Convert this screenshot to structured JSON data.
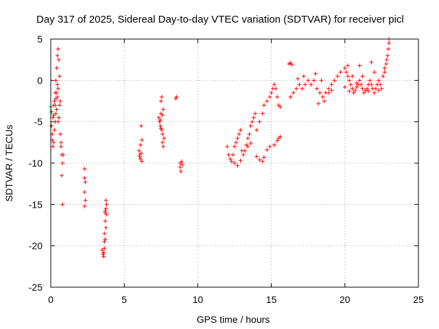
{
  "chart_data": {
    "type": "scatter",
    "title": "Day 317 of 2025, Sidereal Day-to-day VTEC variation (SDTVAR) for receiver picl",
    "xlabel": "GPS time / hours",
    "ylabel": "SDTVAR / TECUs",
    "xlim": [
      0,
      25
    ],
    "ylim": [
      -25,
      5
    ],
    "xticks": [
      0,
      5,
      10,
      15,
      20,
      25
    ],
    "yticks": [
      -25,
      -20,
      -15,
      -10,
      -5,
      0,
      5
    ],
    "grid": true,
    "marker": "plus",
    "marker_color": "#ff0000",
    "series": [
      {
        "name": "SDTVAR",
        "points": [
          [
            0.0,
            -3.2
          ],
          [
            0.05,
            -3.8
          ],
          [
            0.05,
            -5.5
          ],
          [
            0.1,
            -6.5
          ],
          [
            0.1,
            -7.2
          ],
          [
            0.15,
            -4.5
          ],
          [
            0.15,
            -8.0
          ],
          [
            0.2,
            -7.5
          ],
          [
            0.2,
            -3.0
          ],
          [
            0.25,
            -6.0
          ],
          [
            0.25,
            -2.5
          ],
          [
            0.3,
            -5.0
          ],
          [
            0.3,
            -1.5
          ],
          [
            0.35,
            -4.0
          ],
          [
            0.35,
            0.0
          ],
          [
            0.4,
            -3.5
          ],
          [
            0.4,
            1.5
          ],
          [
            0.45,
            -2.0
          ],
          [
            0.45,
            3.0
          ],
          [
            0.5,
            3.8
          ],
          [
            0.5,
            -5.0
          ],
          [
            0.5,
            -1.0
          ],
          [
            0.55,
            2.5
          ],
          [
            0.55,
            -4.5
          ],
          [
            0.6,
            0.5
          ],
          [
            0.6,
            -3.0
          ],
          [
            0.65,
            -6.5
          ],
          [
            0.65,
            -2.5
          ],
          [
            0.7,
            -8.0
          ],
          [
            0.7,
            -7.5
          ],
          [
            0.75,
            -9.0
          ],
          [
            0.75,
            -11.5
          ],
          [
            0.8,
            -10.0
          ],
          [
            0.8,
            -15.0
          ],
          [
            0.85,
            -9.0
          ],
          [
            0.4,
            -1.5
          ],
          [
            0.45,
            -0.5
          ],
          [
            0.3,
            -3.0
          ],
          [
            0.2,
            -4.2
          ],
          [
            0.35,
            -2.2
          ],
          [
            2.3,
            -10.7
          ],
          [
            2.3,
            -11.8
          ],
          [
            2.35,
            -12.3
          ],
          [
            2.3,
            -13.5
          ],
          [
            2.35,
            -14.5
          ],
          [
            2.3,
            -15.2
          ],
          [
            3.5,
            -20.5
          ],
          [
            3.55,
            -21.0
          ],
          [
            3.6,
            -21.3
          ],
          [
            3.6,
            -20.8
          ],
          [
            3.65,
            -19.5
          ],
          [
            3.65,
            -18.5
          ],
          [
            3.7,
            -17.0
          ],
          [
            3.7,
            -16.0
          ],
          [
            3.75,
            -15.5
          ],
          [
            3.75,
            -14.5
          ],
          [
            3.7,
            -15.8
          ],
          [
            3.8,
            -16.2
          ],
          [
            3.75,
            -17.8
          ],
          [
            3.7,
            -19.2
          ],
          [
            3.8,
            -15.0
          ],
          [
            3.65,
            -20.3
          ],
          [
            6.0,
            -8.5
          ],
          [
            6.05,
            -9.0
          ],
          [
            6.1,
            -9.5
          ],
          [
            6.15,
            -8.8
          ],
          [
            6.1,
            -7.8
          ],
          [
            6.2,
            -7.2
          ],
          [
            6.15,
            -5.5
          ],
          [
            6.2,
            -9.8
          ],
          [
            6.05,
            -9.2
          ],
          [
            7.35,
            -4.5
          ],
          [
            7.4,
            -5.0
          ],
          [
            7.45,
            -5.5
          ],
          [
            7.5,
            -4.0
          ],
          [
            7.5,
            -2.5
          ],
          [
            7.55,
            -2.0
          ],
          [
            7.55,
            -6.0
          ],
          [
            7.6,
            -6.5
          ],
          [
            7.6,
            -7.5
          ],
          [
            7.65,
            -8.0
          ],
          [
            7.65,
            -3.5
          ],
          [
            7.7,
            -7.0
          ],
          [
            7.45,
            -4.8
          ],
          [
            7.5,
            -5.8
          ],
          [
            7.6,
            -4.2
          ],
          [
            8.5,
            -2.2
          ],
          [
            8.55,
            -2.0
          ],
          [
            8.8,
            -10.0
          ],
          [
            8.8,
            -10.5
          ],
          [
            8.85,
            -11.0
          ],
          [
            8.9,
            -9.8
          ],
          [
            8.95,
            -10.2
          ],
          [
            12.0,
            -8.0
          ],
          [
            12.1,
            -9.0
          ],
          [
            12.2,
            -9.5
          ],
          [
            12.3,
            -9.8
          ],
          [
            12.4,
            -9.0
          ],
          [
            12.5,
            -8.0
          ],
          [
            12.6,
            -7.5
          ],
          [
            12.7,
            -7.0
          ],
          [
            12.8,
            -6.5
          ],
          [
            12.9,
            -6.0
          ],
          [
            13.0,
            -8.5
          ],
          [
            13.1,
            -9.0
          ],
          [
            13.2,
            -8.5
          ],
          [
            13.3,
            -7.8
          ],
          [
            13.4,
            -7.0
          ],
          [
            13.5,
            -6.5
          ],
          [
            13.6,
            -5.5
          ],
          [
            13.7,
            -5.0
          ],
          [
            13.8,
            -4.5
          ],
          [
            13.9,
            -4.0
          ],
          [
            14.0,
            -6.0
          ],
          [
            14.2,
            -5.0
          ],
          [
            14.4,
            -4.0
          ],
          [
            14.5,
            -3.0
          ],
          [
            14.7,
            -2.5
          ],
          [
            14.9,
            -2.0
          ],
          [
            15.0,
            -1.5
          ],
          [
            15.1,
            -1.0
          ],
          [
            15.2,
            -0.5
          ],
          [
            15.3,
            -1.0
          ],
          [
            15.4,
            -2.0
          ],
          [
            15.5,
            -3.0
          ],
          [
            15.6,
            -3.2
          ],
          [
            12.5,
            -10.0
          ],
          [
            12.7,
            -10.3
          ],
          [
            12.9,
            -9.7
          ],
          [
            13.4,
            -8.0
          ],
          [
            13.6,
            -7.6
          ],
          [
            14.0,
            -9.2
          ],
          [
            14.2,
            -9.6
          ],
          [
            14.4,
            -9.8
          ],
          [
            14.5,
            -9.3
          ],
          [
            14.7,
            -8.4
          ],
          [
            14.9,
            -8.0
          ],
          [
            15.2,
            -7.8
          ],
          [
            15.4,
            -7.3
          ],
          [
            15.5,
            -7.0
          ],
          [
            15.6,
            -6.8
          ],
          [
            16.2,
            2.0
          ],
          [
            16.3,
            2.1
          ],
          [
            16.4,
            1.9
          ],
          [
            16.3,
            -2.0
          ],
          [
            16.5,
            -1.5
          ],
          [
            16.7,
            -1.0
          ],
          [
            16.9,
            -0.5
          ],
          [
            17.1,
            -1.0
          ],
          [
            17.3,
            -0.5
          ],
          [
            17.5,
            0.0
          ],
          [
            17.7,
            -0.5
          ],
          [
            17.9,
            0.0
          ],
          [
            18.1,
            -1.0
          ],
          [
            18.3,
            -1.5
          ],
          [
            18.5,
            -2.0
          ],
          [
            18.7,
            -1.5
          ],
          [
            18.9,
            -1.0
          ],
          [
            19.1,
            -0.5
          ],
          [
            19.3,
            0.0
          ],
          [
            19.5,
            0.5
          ],
          [
            19.7,
            1.0
          ],
          [
            16.8,
            0.2
          ],
          [
            17.2,
            0.5
          ],
          [
            18.0,
            0.8
          ],
          [
            18.4,
            0.0
          ],
          [
            18.6,
            -2.5
          ],
          [
            18.2,
            -2.8
          ],
          [
            18.9,
            -1.5
          ],
          [
            19.1,
            -1.2
          ],
          [
            20.0,
            1.5
          ],
          [
            20.1,
            1.0
          ],
          [
            20.2,
            0.5
          ],
          [
            20.3,
            0.0
          ],
          [
            20.4,
            -0.5
          ],
          [
            20.5,
            -1.0
          ],
          [
            20.6,
            -1.5
          ],
          [
            20.7,
            -1.2
          ],
          [
            20.8,
            -0.8
          ],
          [
            20.9,
            -0.5
          ],
          [
            21.0,
            0.0
          ],
          [
            21.1,
            -0.5
          ],
          [
            21.2,
            -1.0
          ],
          [
            21.3,
            -1.5
          ],
          [
            21.4,
            -1.2
          ],
          [
            21.5,
            -1.0
          ],
          [
            21.6,
            -0.5
          ],
          [
            21.7,
            0.0
          ],
          [
            21.8,
            -0.5
          ],
          [
            21.9,
            -1.0
          ],
          [
            22.0,
            -1.5
          ],
          [
            22.1,
            -1.0
          ],
          [
            22.2,
            -0.5
          ],
          [
            22.3,
            0.0
          ],
          [
            22.4,
            -0.5
          ],
          [
            22.5,
            -1.0
          ],
          [
            22.6,
            0.5
          ],
          [
            22.7,
            1.0
          ],
          [
            22.8,
            2.0
          ],
          [
            22.9,
            3.0
          ],
          [
            23.0,
            4.5
          ],
          [
            23.0,
            5.0
          ],
          [
            22.95,
            3.8
          ],
          [
            22.85,
            2.5
          ],
          [
            22.7,
            1.5
          ],
          [
            21.0,
            1.8
          ],
          [
            20.2,
            1.8
          ],
          [
            20.5,
            0.5
          ],
          [
            21.8,
            2.2
          ],
          [
            22.0,
            1.0
          ],
          [
            20.0,
            -0.8
          ],
          [
            20.3,
            -1.3
          ],
          [
            20.8,
            -0.3
          ],
          [
            21.2,
            0.5
          ],
          [
            22.3,
            -1.2
          ],
          [
            21.6,
            -1.3
          ]
        ]
      }
    ]
  }
}
